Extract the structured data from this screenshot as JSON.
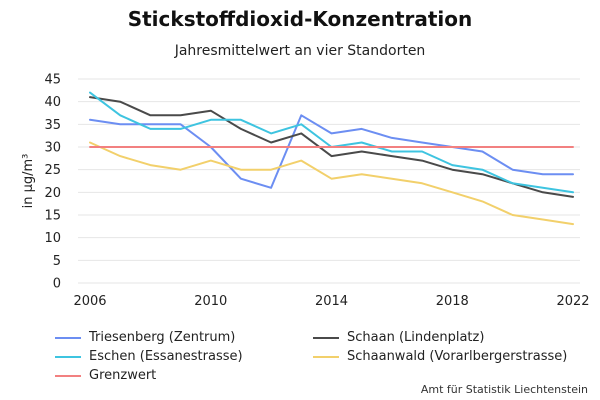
{
  "chart_data": {
    "type": "line",
    "title": "Stickstoffdioxid-Konzentration",
    "subtitle": "Jahresmittelwert an vier Standorten",
    "ylabel": "in µg/m³",
    "xlabel": "",
    "x": [
      2006,
      2007,
      2008,
      2009,
      2010,
      2011,
      2012,
      2013,
      2014,
      2015,
      2016,
      2017,
      2018,
      2019,
      2020,
      2021,
      2022
    ],
    "xticks": [
      2006,
      2010,
      2014,
      2018,
      2022
    ],
    "xlim": [
      2006,
      2022
    ],
    "ylim": [
      0,
      45
    ],
    "yticks": [
      0,
      5,
      10,
      15,
      20,
      25,
      30,
      35,
      40,
      45
    ],
    "grid": "horizontal",
    "legend_position": "bottom",
    "series": [
      {
        "name": "Triesenberg (Zentrum)",
        "color": "#6c8ef2",
        "values": [
          36,
          35,
          35,
          35,
          30,
          23,
          21,
          37,
          33,
          34,
          32,
          31,
          30,
          29,
          25,
          24,
          24
        ]
      },
      {
        "name": "Schaan (Lindenplatz)",
        "color": "#4a4a4a",
        "values": [
          41,
          40,
          37,
          37,
          38,
          34,
          31,
          33,
          28,
          29,
          28,
          27,
          25,
          24,
          22,
          20,
          19
        ]
      },
      {
        "name": "Eschen (Essanestrasse)",
        "color": "#3ec4e0",
        "values": [
          42,
          37,
          34,
          34,
          36,
          36,
          33,
          35,
          30,
          31,
          29,
          29,
          26,
          25,
          22,
          21,
          20
        ]
      },
      {
        "name": "Schaanwald (Vorarlbergerstrasse)",
        "color": "#f2d06b",
        "values": [
          31,
          28,
          26,
          25,
          27,
          25,
          25,
          27,
          23,
          24,
          23,
          22,
          20,
          18,
          15,
          14,
          13
        ]
      },
      {
        "name": "Grenzwert",
        "color": "#f28080",
        "values": [
          30,
          30,
          30,
          30,
          30,
          30,
          30,
          30,
          30,
          30,
          30,
          30,
          30,
          30,
          30,
          30,
          30
        ]
      }
    ]
  },
  "source": "Amt für Statistik Liechtenstein"
}
